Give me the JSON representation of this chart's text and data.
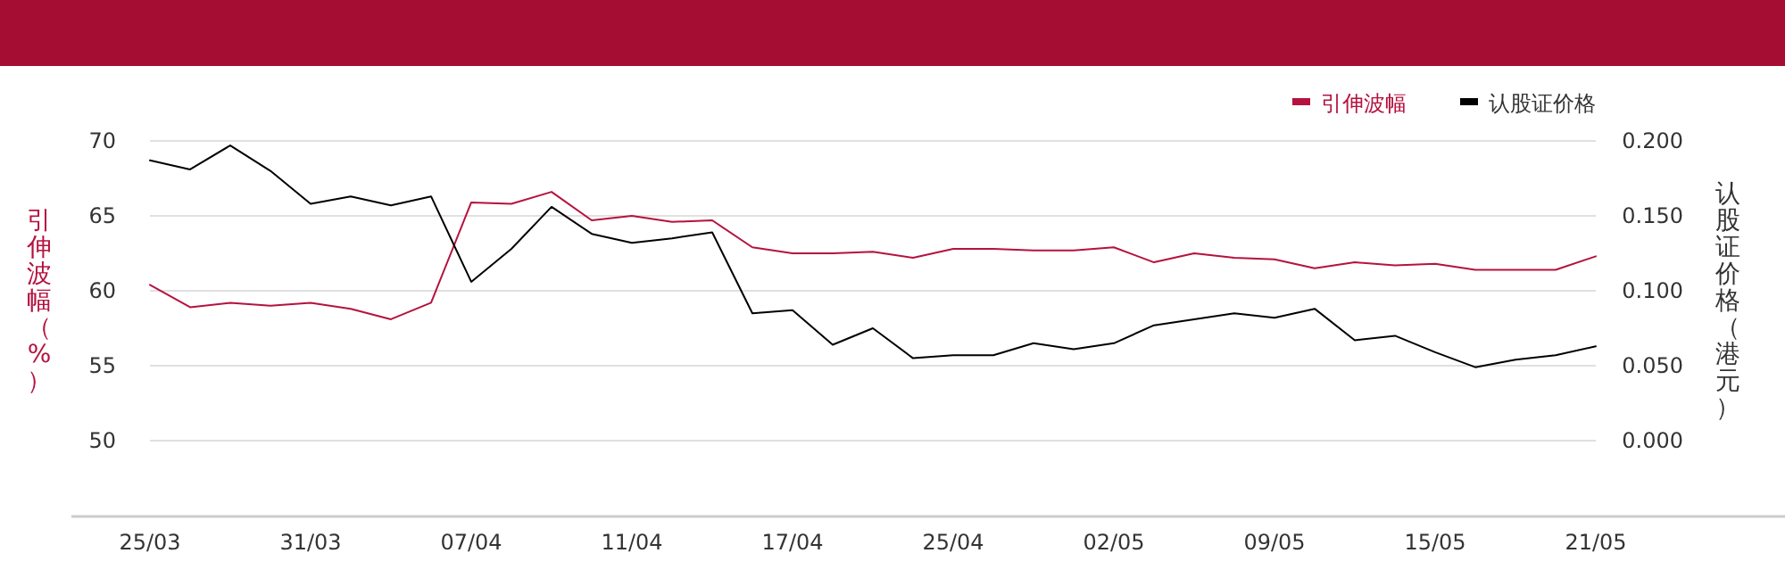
{
  "chart_data": {
    "type": "line",
    "categories": [
      "25/03",
      null,
      null,
      null,
      "31/03",
      null,
      null,
      null,
      "07/04",
      null,
      null,
      null,
      "11/04",
      null,
      null,
      null,
      "17/04",
      null,
      null,
      null,
      "25/04",
      null,
      null,
      null,
      "02/05",
      null,
      null,
      null,
      "09/05",
      null,
      null,
      null,
      "15/05",
      null,
      null,
      null,
      "21/05"
    ],
    "series": [
      {
        "name": "引伸波幅",
        "color": "#b5123f",
        "values": [
          60.4,
          58.9,
          59.2,
          59.0,
          59.2,
          58.8,
          58.1,
          59.2,
          65.9,
          65.8,
          66.6,
          64.7,
          65.0,
          64.6,
          64.7,
          62.9,
          62.5,
          62.5,
          62.6,
          62.2,
          62.8,
          62.8,
          62.7,
          62.7,
          62.9,
          61.9,
          62.5,
          62.2,
          62.1,
          61.5,
          61.9,
          61.7,
          61.8,
          61.4,
          61.4,
          61.4,
          62.3
        ]
      },
      {
        "name": "认股证价格",
        "color": "#000000",
        "axis": "y2",
        "values": [
          0.187,
          0.181,
          0.197,
          0.18,
          0.158,
          0.163,
          0.157,
          0.163,
          0.106,
          0.128,
          0.156,
          0.138,
          0.132,
          0.135,
          0.139,
          0.085,
          0.087,
          0.064,
          0.075,
          0.055,
          0.057,
          0.057,
          0.065,
          0.061,
          0.065,
          0.077,
          0.081,
          0.085,
          0.082,
          0.088,
          0.067,
          0.07,
          0.059,
          0.049,
          0.054,
          0.057,
          0.063
        ]
      }
    ],
    "ylabel": "引伸波幅（%）",
    "y2label": "认股证价格（港元）",
    "ylim": [
      45,
      70
    ],
    "yticks": [
      50,
      55,
      60,
      65,
      70
    ],
    "y2lim": [
      -0.05,
      0.2
    ],
    "y2ticks": [
      {
        "value": 0,
        "label": "0.000"
      },
      {
        "value": 0.05,
        "label": "0.050"
      },
      {
        "value": 0.1,
        "label": "0.100"
      },
      {
        "value": 0.15,
        "label": "0.150"
      },
      {
        "value": 0.2,
        "label": "0.200"
      }
    ],
    "grid": "y",
    "legend": "top right",
    "line_style": "solid",
    "marker": "none"
  }
}
